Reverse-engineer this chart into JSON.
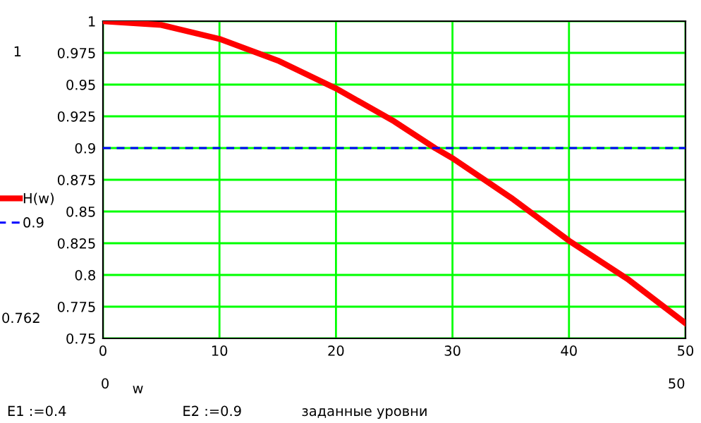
{
  "chart_data": {
    "type": "line",
    "xlabel": "w",
    "xlim": [
      0,
      50
    ],
    "xticks": [
      0,
      10,
      20,
      30,
      40,
      50
    ],
    "ylim": [
      0.75,
      1
    ],
    "yticks": [
      0.75,
      0.775,
      0.8,
      0.825,
      0.85,
      0.875,
      0.9,
      0.925,
      0.95,
      0.975,
      1
    ],
    "grid": true,
    "legend": "left",
    "series": [
      {
        "name": "H(w)",
        "color": "#ff0000",
        "line_style": "solid",
        "x": [
          0,
          5,
          10,
          15,
          20,
          25,
          28.5,
          30,
          35,
          40,
          45,
          50
        ],
        "values": [
          1,
          0.997,
          0.986,
          0.969,
          0.947,
          0.921,
          0.9,
          0.892,
          0.861,
          0.827,
          0.797,
          0.762
        ]
      },
      {
        "name": "0.9",
        "color": "#0000ff",
        "line_style": "dashed",
        "x": [
          0,
          50
        ],
        "values": [
          0.9,
          0.9
        ]
      }
    ],
    "annotations": [
      "1",
      "0.762",
      "0",
      "50",
      "E1 :=0.4",
      "E2 :=0.9",
      "заданные уровни"
    ]
  }
}
